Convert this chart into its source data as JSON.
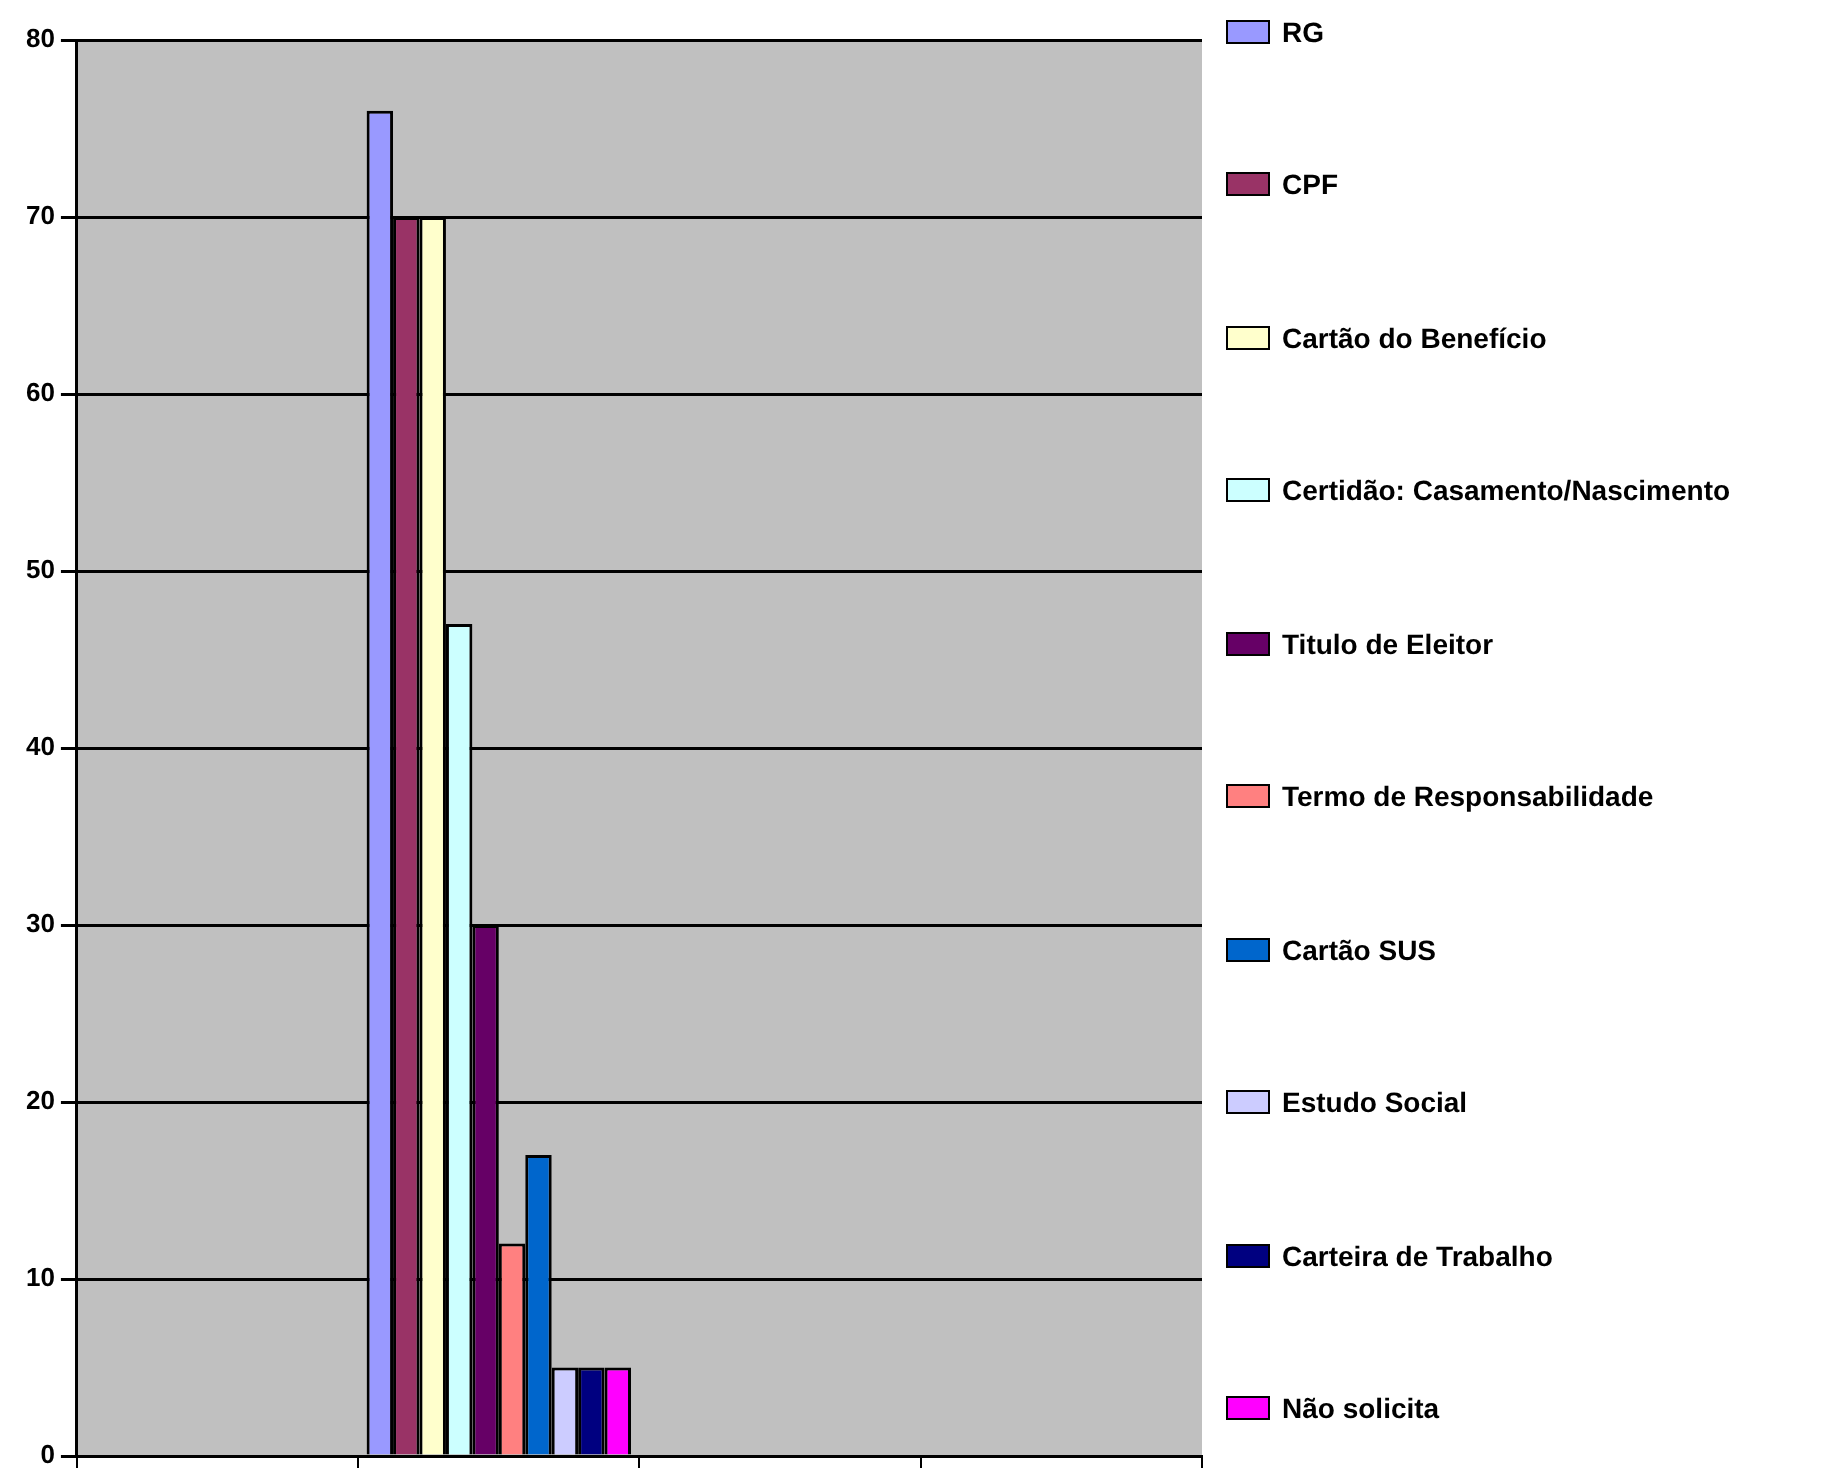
{
  "chart_data": {
    "type": "bar",
    "categories": [
      null,
      null,
      null,
      null
    ],
    "series": [
      {
        "name": "RG",
        "color": "#9999ff",
        "values": [
          null,
          76,
          null,
          null
        ]
      },
      {
        "name": "CPF",
        "color": "#993366",
        "values": [
          null,
          70,
          null,
          null
        ]
      },
      {
        "name": "Cartão do Benefício",
        "color": "#ffffcc",
        "values": [
          null,
          70,
          null,
          null
        ]
      },
      {
        "name": "Certidão: Casamento/Nascimento",
        "color": "#ccffff",
        "values": [
          null,
          47,
          null,
          null
        ]
      },
      {
        "name": "Titulo de Eleitor",
        "color": "#660066",
        "values": [
          null,
          30,
          null,
          null
        ]
      },
      {
        "name": "Termo de Responsabilidade",
        "color": "#ff8080",
        "values": [
          null,
          12,
          null,
          null
        ]
      },
      {
        "name": "Cartão SUS",
        "color": "#0066cc",
        "values": [
          null,
          17,
          null,
          null
        ]
      },
      {
        "name": "Estudo Social",
        "color": "#ccccff",
        "values": [
          null,
          5,
          null,
          null
        ]
      },
      {
        "name": "Carteira de Trabalho",
        "color": "#000080",
        "values": [
          null,
          5,
          null,
          null
        ]
      },
      {
        "name": "Não solicita",
        "color": "#ff00ff",
        "values": [
          null,
          5,
          null,
          null
        ]
      }
    ],
    "ylim": [
      0,
      80
    ],
    "yticks": [
      0,
      10,
      20,
      30,
      40,
      50,
      60,
      70,
      80
    ],
    "grid": "y",
    "legend": "right",
    "tick_labels": "y"
  }
}
